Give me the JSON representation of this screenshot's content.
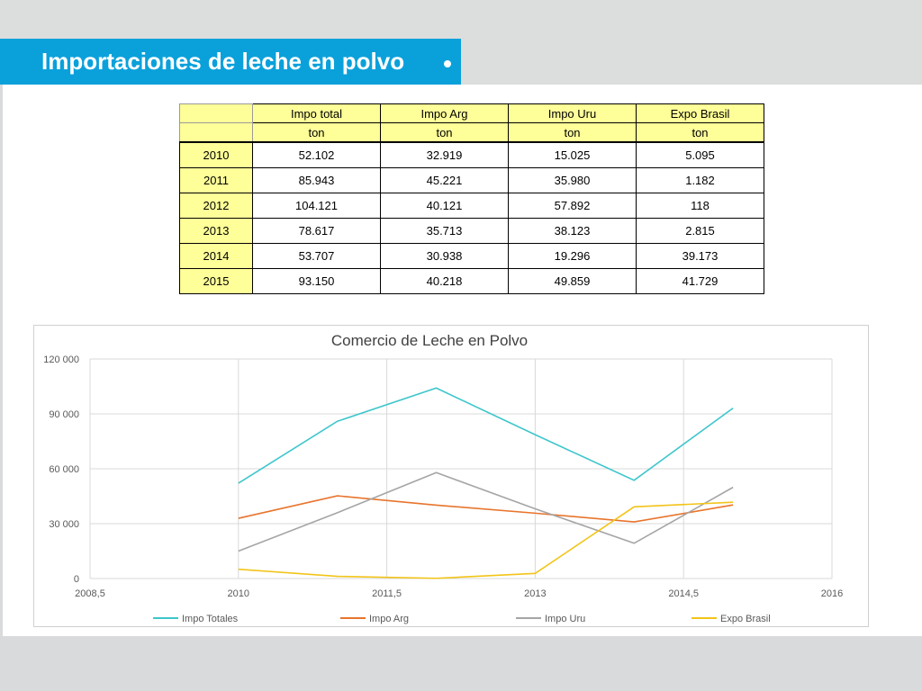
{
  "slide": {
    "title": "Importaciones de leche en polvo",
    "accent_color": "#0aa1db"
  },
  "table": {
    "headers": [
      "Impo total",
      "Impo Arg",
      "Impo Uru",
      "Expo Brasil"
    ],
    "units": [
      "ton",
      "ton",
      "ton",
      "ton"
    ],
    "rows": [
      {
        "year": "2010",
        "values": [
          "52.102",
          "32.919",
          "15.025",
          "5.095"
        ]
      },
      {
        "year": "2011",
        "values": [
          "85.943",
          "45.221",
          "35.980",
          "1.182"
        ]
      },
      {
        "year": "2012",
        "values": [
          "104.121",
          "40.121",
          "57.892",
          "118"
        ]
      },
      {
        "year": "2013",
        "values": [
          "78.617",
          "35.713",
          "38.123",
          "2.815"
        ]
      },
      {
        "year": "2014",
        "values": [
          "53.707",
          "30.938",
          "19.296",
          "39.173"
        ]
      },
      {
        "year": "2015",
        "values": [
          "93.150",
          "40.218",
          "49.859",
          "41.729"
        ]
      }
    ]
  },
  "chart_data": {
    "type": "line",
    "title": "Comercio de Leche en  Polvo",
    "xlabel": "",
    "ylabel": "",
    "xlim": [
      2008.5,
      2016
    ],
    "ylim": [
      0,
      120000
    ],
    "x_ticks": [
      "2008,5",
      "2010",
      "2011,5",
      "2013",
      "2014,5",
      "2016"
    ],
    "y_ticks": [
      "0",
      "30 000",
      "60 000",
      "90 000",
      "120 000"
    ],
    "grid": true,
    "legend_position": "bottom",
    "x": [
      2010,
      2011,
      2012,
      2013,
      2014,
      2015
    ],
    "series": [
      {
        "name": "Impo Totales",
        "color": "#3ec6cc",
        "values": [
          52102,
          85943,
          104121,
          78617,
          53707,
          93150
        ]
      },
      {
        "name": "Impo Arg",
        "color": "#e8742c",
        "values": [
          32919,
          45221,
          40121,
          35713,
          30938,
          40218
        ]
      },
      {
        "name": "Impo Uru",
        "color": "#a5a5a5",
        "values": [
          15025,
          35980,
          57892,
          38123,
          19296,
          49859
        ]
      },
      {
        "name": "Expo Brasil",
        "color": "#f2c418",
        "values": [
          5095,
          1182,
          118,
          2815,
          39173,
          41729
        ]
      }
    ]
  }
}
